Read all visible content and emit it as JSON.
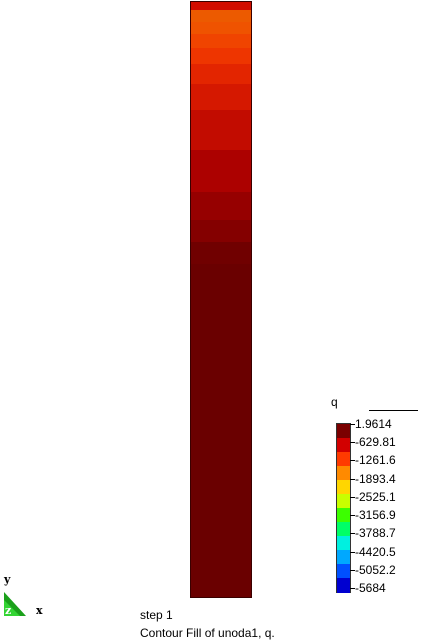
{
  "plot": {
    "band_colors": [
      "#d20d00",
      "#ec5a00",
      "#ef5300",
      "#f04400",
      "#ee3500",
      "#e32500",
      "#d51800",
      "#c20c00",
      "#ac0100",
      "#960000",
      "#840000",
      "#700000",
      "#6a0000"
    ]
  },
  "legend": {
    "title": "q",
    "ticks": [
      "1.9614",
      "-629.81",
      "-1261.6",
      "-1893.4",
      "-2525.1",
      "-3156.9",
      "-3788.7",
      "-4420.5",
      "-5052.2",
      "-5684"
    ],
    "colors": [
      "#7a0000",
      "#d20000",
      "#ff3a00",
      "#ff8a00",
      "#ffd600",
      "#c8ff00",
      "#3cff00",
      "#00ff66",
      "#00f0e0",
      "#00a8ff",
      "#0050ff",
      "#0000d0"
    ]
  },
  "axes": {
    "y": "y",
    "z": "z",
    "x": "x"
  },
  "caption": {
    "step": "step 1",
    "description": "Contour Fill of unoda1, q."
  }
}
